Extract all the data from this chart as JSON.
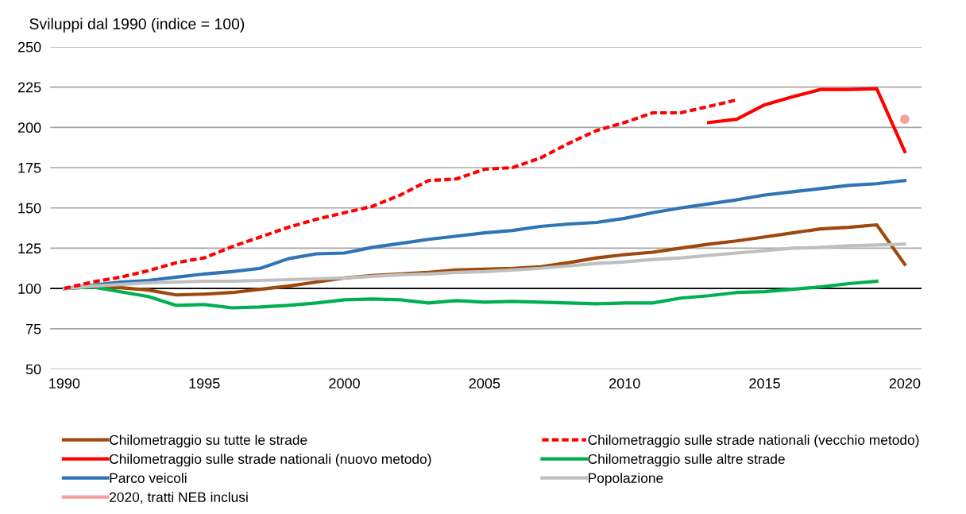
{
  "chart_data": {
    "type": "line",
    "title": "Sviluppi dal 1990 (indice = 100)",
    "xlim": [
      1989.5,
      2020.6
    ],
    "xticks": [
      1990,
      1995,
      2000,
      2005,
      2010,
      2015,
      2020
    ],
    "ylim": [
      50,
      250
    ],
    "yticks": [
      50,
      75,
      100,
      125,
      150,
      175,
      200,
      225,
      250
    ],
    "grid": "y",
    "legend": "bottom",
    "marker": "none",
    "ref_lines": [
      {
        "axis": "y",
        "value": 100,
        "color": "#000000",
        "line_style": "solid"
      }
    ],
    "series": [
      {
        "name": "Chilometraggio su tutte le strade",
        "color": "#9e480e",
        "x": [
          1990,
          1991,
          1992,
          1993,
          1994,
          1995,
          1996,
          1997,
          1998,
          1999,
          2000,
          2001,
          2002,
          2003,
          2004,
          2005,
          2006,
          2007,
          2008,
          2009,
          2010,
          2011,
          2012,
          2013,
          2014,
          2015,
          2016,
          2017,
          2018,
          2019,
          2020
        ],
        "values": [
          100,
          101,
          100.5,
          99,
          96,
          96.5,
          97.5,
          99.5,
          101.5,
          104,
          106.5,
          108,
          109,
          110,
          111.5,
          112,
          112.5,
          113.5,
          116,
          119,
          121,
          122.5,
          125,
          127.5,
          129.5,
          132,
          134.5,
          137,
          138,
          139.5,
          115
        ]
      },
      {
        "name": "Chilometraggio sulle strade nationali (vecchio metodo)",
        "color": "#ff0000",
        "line_style": "dashed",
        "x": [
          1990,
          1991,
          1992,
          1993,
          1994,
          1995,
          1996,
          1997,
          1998,
          1999,
          2000,
          2001,
          2002,
          2003,
          2004,
          2005,
          2006,
          2007,
          2008,
          2009,
          2010,
          2011,
          2012,
          2013,
          2014
        ],
        "values": [
          100,
          104,
          107,
          111,
          116,
          119,
          126,
          132,
          138,
          143,
          147,
          151,
          158,
          167,
          168,
          174,
          175,
          181,
          190,
          198,
          203,
          209,
          209,
          213,
          217
        ]
      },
      {
        "name": "Chilometraggio sulle strade nationali (nuovo metodo)",
        "color": "#ff0000",
        "x": [
          2013,
          2014,
          2015,
          2016,
          2017,
          2018,
          2019,
          2020
        ],
        "values": [
          203,
          205,
          214,
          219,
          223.5,
          223.5,
          224,
          185
        ]
      },
      {
        "name": "Chilometraggio sulle altre strade",
        "color": "#00b050",
        "x": [
          1990,
          1991,
          1992,
          1993,
          1994,
          1995,
          1996,
          1997,
          1998,
          1999,
          2000,
          2001,
          2002,
          2003,
          2004,
          2005,
          2006,
          2007,
          2008,
          2009,
          2010,
          2011,
          2012,
          2013,
          2014,
          2015,
          2016,
          2017,
          2018,
          2019
        ],
        "values": [
          100,
          101,
          98,
          95,
          89.5,
          90,
          88,
          88.5,
          89.5,
          91,
          93,
          93.5,
          93,
          91,
          92.5,
          91.5,
          92,
          91.5,
          91,
          90.5,
          91,
          91,
          94,
          95.5,
          97.5,
          98,
          99.5,
          101,
          103,
          104.5
        ]
      },
      {
        "name": "Parco veicoli",
        "color": "#2e75b6",
        "x": [
          1990,
          1991,
          1992,
          1993,
          1994,
          1995,
          1996,
          1997,
          1998,
          1999,
          2000,
          2001,
          2002,
          2003,
          2004,
          2005,
          2006,
          2007,
          2008,
          2009,
          2010,
          2011,
          2012,
          2013,
          2014,
          2015,
          2016,
          2017,
          2018,
          2019,
          2020
        ],
        "values": [
          100,
          102,
          104,
          105,
          107,
          109,
          110.5,
          112.5,
          118.5,
          121.5,
          122,
          125.5,
          128,
          130.5,
          132.5,
          134.5,
          136,
          138.5,
          140,
          141,
          143.5,
          147,
          150,
          152.5,
          155,
          158,
          160,
          162,
          164,
          165,
          167
        ]
      },
      {
        "name": "Popolazione",
        "color": "#bfbfbf",
        "x": [
          1990,
          1991,
          1992,
          1993,
          1994,
          1995,
          1996,
          1997,
          1998,
          1999,
          2000,
          2001,
          2002,
          2003,
          2004,
          2005,
          2006,
          2007,
          2008,
          2009,
          2010,
          2011,
          2012,
          2013,
          2014,
          2015,
          2016,
          2017,
          2018,
          2019,
          2020
        ],
        "values": [
          100,
          101.5,
          102.5,
          103.5,
          104,
          104.5,
          104.5,
          105,
          105.5,
          106,
          106.5,
          107.5,
          108.5,
          109,
          110,
          110.5,
          111.5,
          112.5,
          114,
          115.5,
          116.5,
          118,
          119,
          120.5,
          122,
          123.5,
          125,
          125.5,
          126.5,
          127,
          127.5
        ]
      },
      {
        "name": "2020, tratti NEB inclusi",
        "color": "#f4a09c",
        "type": "scatter",
        "marker": "circle",
        "x": [
          2020
        ],
        "values": [
          205
        ]
      }
    ]
  }
}
